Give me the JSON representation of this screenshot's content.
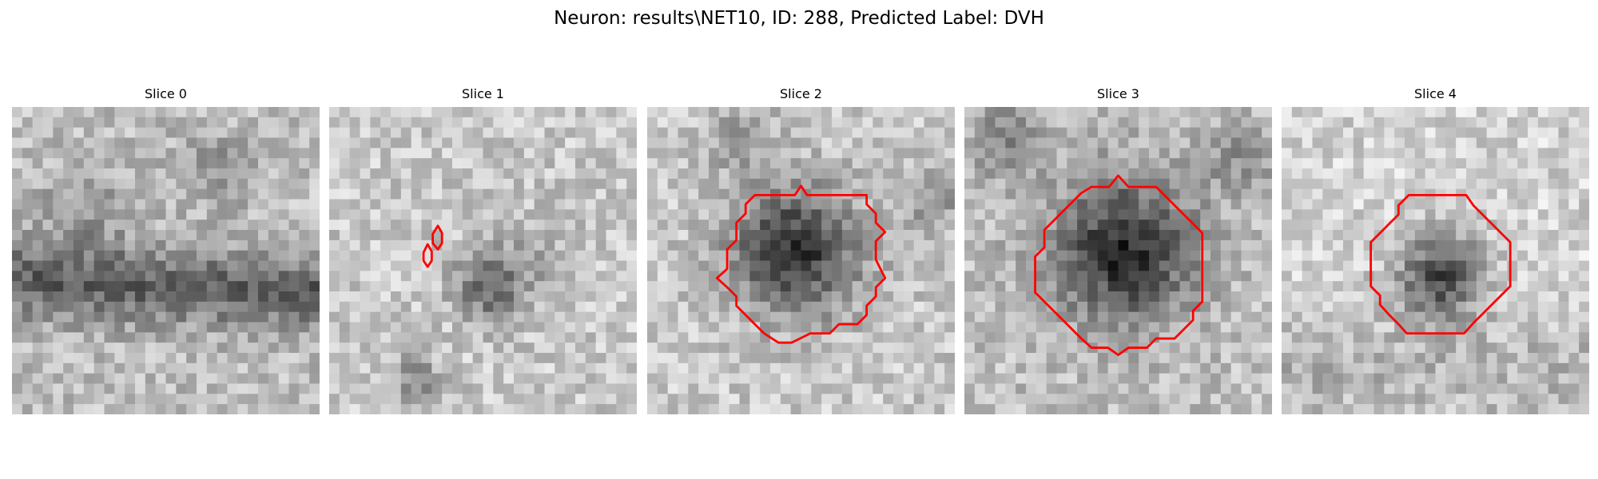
{
  "title": "Neuron: results\\NET10, ID: 288, Predicted Label: DVH",
  "contour_color": "#ff0000",
  "slices": [
    {
      "label": "Slice 0"
    },
    {
      "label": "Slice 1"
    },
    {
      "label": "Slice 2"
    },
    {
      "label": "Slice 3"
    },
    {
      "label": "Slice 4"
    }
  ]
}
